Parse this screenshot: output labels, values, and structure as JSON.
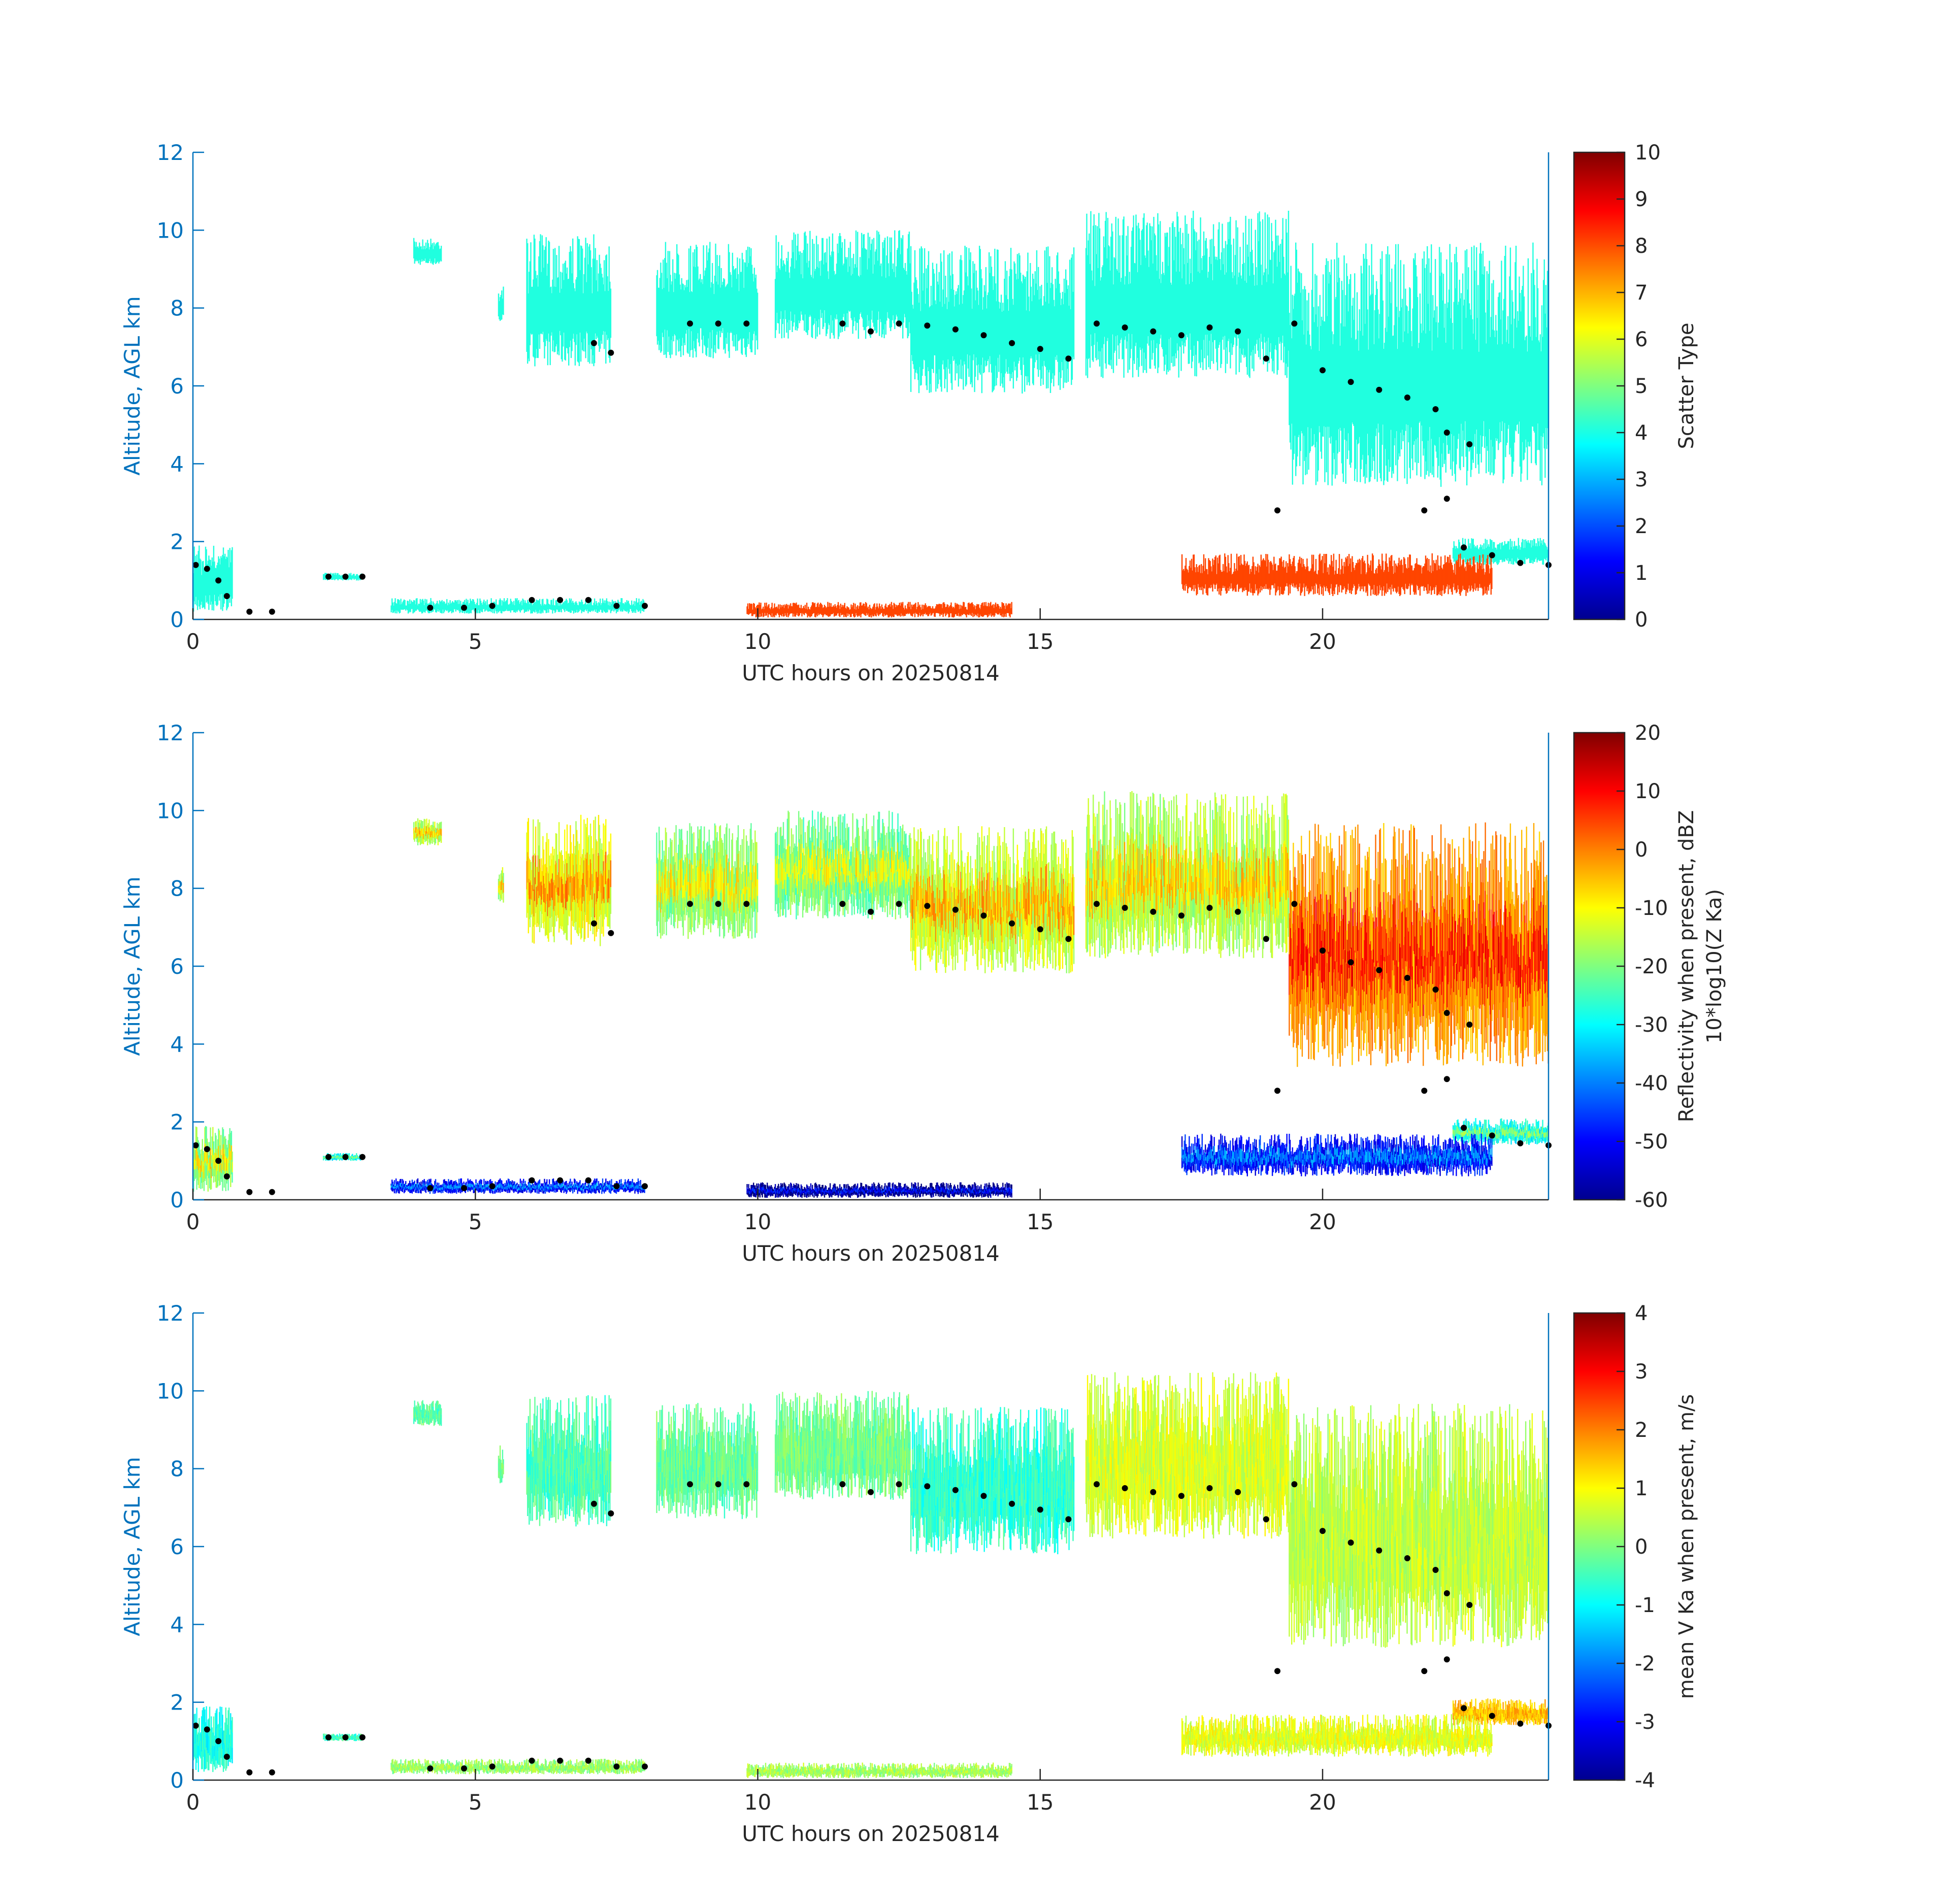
{
  "colors": {
    "axis_left": "#0072BD",
    "axis_bottom": "#262626",
    "text_dark": "#262626",
    "cloud_bright": "#20FFDF",
    "low_red": "#FF4500",
    "dots": "#000000"
  },
  "chart_data": [
    {
      "type": "heatmap",
      "xlabel": "UTC hours on 20250814",
      "ylabel": "Altitude, AGL km",
      "xlim": [
        0,
        24
      ],
      "ylim": [
        0,
        12
      ],
      "xticks": [
        0,
        5,
        10,
        15,
        20
      ],
      "yticks": [
        0,
        2,
        4,
        6,
        8,
        10,
        12
      ],
      "grid": false,
      "colorbar": {
        "label": "Scatter Type",
        "label_line2": "",
        "ticks": [
          0,
          1,
          2,
          3,
          4,
          5,
          6,
          7,
          8,
          9,
          10
        ],
        "range": [
          0,
          10
        ],
        "tick_labels": [
          "0",
          "1",
          "2",
          "3",
          "4",
          "5",
          "6",
          "7",
          "8",
          "9",
          "10"
        ]
      }
    },
    {
      "type": "heatmap",
      "xlabel": "UTC hours on 20250814",
      "ylabel": "Altitude, AGL km",
      "xlim": [
        0,
        24
      ],
      "ylim": [
        0,
        12
      ],
      "xticks": [
        0,
        5,
        10,
        15,
        20
      ],
      "yticks": [
        0,
        2,
        4,
        6,
        8,
        10,
        12
      ],
      "grid": false,
      "colorbar": {
        "label": "Reflectivity when present, dBZ",
        "label_line2": "10*log10(Z Ka)",
        "ticks": [
          -60,
          -50,
          -40,
          -30,
          -20,
          -10,
          0,
          10,
          20
        ],
        "range": [
          -60,
          20
        ],
        "tick_labels": [
          "-60",
          "-50",
          "-40",
          "-30",
          "-20",
          "-10",
          "0",
          "10",
          "20"
        ]
      }
    },
    {
      "type": "heatmap",
      "xlabel": "UTC hours on 20250814",
      "ylabel": "Altitude, AGL km",
      "xlim": [
        0,
        24
      ],
      "ylim": [
        0,
        12
      ],
      "xticks": [
        0,
        5,
        10,
        15,
        20
      ],
      "yticks": [
        0,
        2,
        4,
        6,
        8,
        10,
        12
      ],
      "grid": false,
      "colorbar": {
        "label": "mean V Ka when present, m/s",
        "label_line2": "",
        "ticks": [
          -4,
          -3,
          -2,
          -1,
          0,
          1,
          2,
          3,
          4
        ],
        "range": [
          -4,
          4
        ],
        "tick_labels": [
          "-4",
          "-3",
          "-2",
          "-1",
          "0",
          "1",
          "2",
          "3",
          "4"
        ]
      }
    }
  ],
  "cloud_layers": [
    {
      "t0": 3.9,
      "t1": 4.4,
      "base": 9.1,
      "top": 9.8,
      "v": 4.0,
      "dbz": -12,
      "vel": -0.3
    },
    {
      "t0": 5.4,
      "t1": 5.5,
      "base": 7.6,
      "top": 8.6,
      "v": 4.0,
      "dbz": -12,
      "vel": 0.0
    },
    {
      "t0": 5.9,
      "t1": 7.4,
      "base": 6.5,
      "top": 9.9,
      "v": 4.0,
      "dbz": -8,
      "vel": -0.4
    },
    {
      "t0": 8.2,
      "t1": 10.0,
      "base": 6.7,
      "top": 9.7,
      "v": 4.0,
      "dbz": -15,
      "vel": -0.2
    },
    {
      "t0": 10.3,
      "t1": 12.7,
      "base": 7.2,
      "top": 10.0,
      "v": 4.0,
      "dbz": -17,
      "vel": -0.1
    },
    {
      "t0": 12.7,
      "t1": 15.6,
      "base": 5.8,
      "top": 9.6,
      "v": 4.0,
      "dbz": -10,
      "vel": -0.6
    },
    {
      "t0": 15.8,
      "t1": 19.4,
      "base": 6.2,
      "top": 10.5,
      "v": 4.0,
      "dbz": -12,
      "vel": 0.7
    },
    {
      "t0": 19.4,
      "t1": 24.0,
      "base": 3.4,
      "top": 9.7,
      "v": 4.0,
      "dbz": 2,
      "vel": 0.5
    },
    {
      "t0": 0.0,
      "t1": 0.7,
      "base": 0.2,
      "top": 1.9,
      "v": 4.0,
      "dbz": -15,
      "vel": -0.8
    },
    {
      "t0": 2.3,
      "t1": 3.0,
      "base": 1.0,
      "top": 1.2,
      "v": 4.0,
      "dbz": -25,
      "vel": -0.5
    },
    {
      "t0": 22.3,
      "t1": 24.0,
      "base": 1.4,
      "top": 2.1,
      "v": 4.0,
      "dbz": -25,
      "vel": 1.5
    }
  ],
  "low_layers": [
    {
      "t0": 3.5,
      "t1": 8.0,
      "base": 0.15,
      "top": 0.55,
      "v": 4.0,
      "dbz": -45,
      "vel": 0.2
    },
    {
      "t0": 9.8,
      "t1": 14.5,
      "base": 0.05,
      "top": 0.45,
      "v": 8.5,
      "dbz": -55,
      "vel": 0.3
    },
    {
      "t0": 17.5,
      "t1": 23.0,
      "base": 0.6,
      "top": 1.7,
      "v": 8.5,
      "dbz": -45,
      "vel": 0.8
    }
  ],
  "boundary_points": [
    {
      "t": 0.05,
      "h": 1.4
    },
    {
      "t": 0.25,
      "h": 1.3
    },
    {
      "t": 0.45,
      "h": 1.0
    },
    {
      "t": 0.6,
      "h": 0.6
    },
    {
      "t": 1.0,
      "h": 0.2
    },
    {
      "t": 1.4,
      "h": 0.2
    },
    {
      "t": 2.4,
      "h": 1.1
    },
    {
      "t": 2.7,
      "h": 1.1
    },
    {
      "t": 3.0,
      "h": 1.1
    },
    {
      "t": 4.2,
      "h": 0.3
    },
    {
      "t": 4.8,
      "h": 0.3
    },
    {
      "t": 5.3,
      "h": 0.35
    },
    {
      "t": 6.0,
      "h": 0.5
    },
    {
      "t": 6.5,
      "h": 0.5
    },
    {
      "t": 7.0,
      "h": 0.5
    },
    {
      "t": 7.5,
      "h": 0.35
    },
    {
      "t": 8.0,
      "h": 0.35
    },
    {
      "t": 7.1,
      "h": 7.1
    },
    {
      "t": 7.4,
      "h": 6.85
    },
    {
      "t": 8.8,
      "h": 7.6
    },
    {
      "t": 9.3,
      "h": 7.6
    },
    {
      "t": 9.8,
      "h": 7.6
    },
    {
      "t": 11.5,
      "h": 7.6
    },
    {
      "t": 12.0,
      "h": 7.4
    },
    {
      "t": 12.5,
      "h": 7.6
    },
    {
      "t": 13.0,
      "h": 7.55
    },
    {
      "t": 13.5,
      "h": 7.45
    },
    {
      "t": 14.0,
      "h": 7.3
    },
    {
      "t": 14.5,
      "h": 7.1
    },
    {
      "t": 15.0,
      "h": 6.95
    },
    {
      "t": 15.5,
      "h": 6.7
    },
    {
      "t": 16.0,
      "h": 7.6
    },
    {
      "t": 16.5,
      "h": 7.5
    },
    {
      "t": 17.0,
      "h": 7.4
    },
    {
      "t": 17.5,
      "h": 7.3
    },
    {
      "t": 18.0,
      "h": 7.5
    },
    {
      "t": 18.5,
      "h": 7.4
    },
    {
      "t": 19.0,
      "h": 6.7
    },
    {
      "t": 19.5,
      "h": 7.6
    },
    {
      "t": 20.0,
      "h": 6.4
    },
    {
      "t": 20.5,
      "h": 6.1
    },
    {
      "t": 21.0,
      "h": 5.9
    },
    {
      "t": 21.5,
      "h": 5.7
    },
    {
      "t": 22.0,
      "h": 5.4
    },
    {
      "t": 22.2,
      "h": 4.8
    },
    {
      "t": 22.6,
      "h": 4.5
    },
    {
      "t": 19.2,
      "h": 2.8
    },
    {
      "t": 21.8,
      "h": 2.8
    },
    {
      "t": 22.2,
      "h": 3.1
    },
    {
      "t": 22.5,
      "h": 1.85
    },
    {
      "t": 23.0,
      "h": 1.65
    },
    {
      "t": 23.5,
      "h": 1.45
    },
    {
      "t": 24.0,
      "h": 1.4
    }
  ]
}
